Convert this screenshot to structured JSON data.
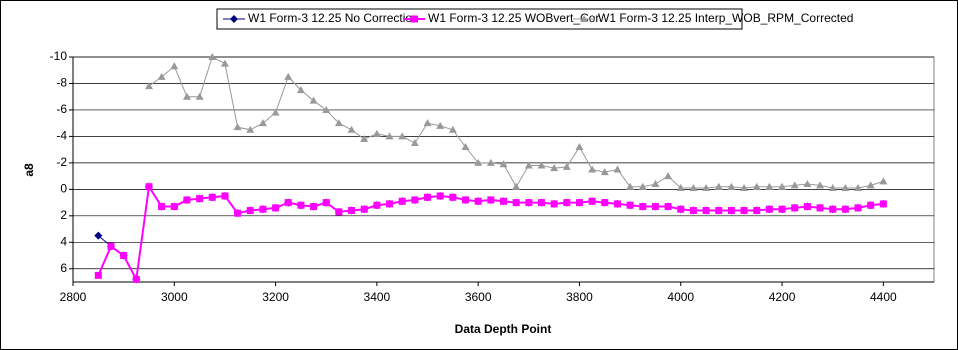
{
  "chart_data": {
    "type": "line",
    "x_label": "Data Depth Point",
    "y_label": "a8",
    "x": [
      2850,
      2875,
      2900,
      2925,
      2950,
      2975,
      3000,
      3025,
      3050,
      3075,
      3100,
      3125,
      3150,
      3175,
      3200,
      3225,
      3250,
      3275,
      3300,
      3325,
      3350,
      3375,
      3400,
      3425,
      3450,
      3475,
      3500,
      3525,
      3550,
      3575,
      3600,
      3625,
      3650,
      3675,
      3700,
      3725,
      3750,
      3775,
      3800,
      3825,
      3850,
      3875,
      3900,
      3925,
      3950,
      3975,
      4000,
      4025,
      4050,
      4075,
      4100,
      4125,
      4150,
      4175,
      4200,
      4225,
      4250,
      4275,
      4300,
      4325,
      4350,
      4375,
      4400
    ],
    "series": [
      {
        "name": "W1 Form-3 12.25 No Correction",
        "color": "#000080",
        "marker": "diamond",
        "values": [
          3.5,
          4.3,
          5,
          6.8,
          -0.2,
          1.3,
          1.3,
          0.8,
          0.7,
          0.6,
          0.5,
          1.8,
          1.6,
          1.5,
          1.4,
          1.0,
          1.2,
          1.3,
          1.0,
          1.7,
          1.6,
          1.5,
          1.2,
          1.1,
          0.9,
          0.8,
          0.6,
          0.5,
          0.6,
          0.8,
          0.9,
          0.8,
          0.9,
          1.0,
          1.0,
          1.0,
          1.1,
          1.0,
          1.0,
          0.9,
          1.0,
          1.1,
          1.2,
          1.3,
          1.3,
          1.3,
          1.5,
          1.6,
          1.6,
          1.6,
          1.6,
          1.6,
          1.6,
          1.5,
          1.5,
          1.4,
          1.3,
          1.4,
          1.5,
          1.5,
          1.4,
          1.2,
          1.1
        ]
      },
      {
        "name": "W1 Form-3 12.25 WOBvert_Cor",
        "color": "#ff00ff",
        "marker": "square",
        "values": [
          6.5,
          4.3,
          5,
          6.8,
          -0.2,
          1.3,
          1.3,
          0.8,
          0.7,
          0.6,
          0.5,
          1.8,
          1.6,
          1.5,
          1.4,
          1.0,
          1.2,
          1.3,
          1.0,
          1.7,
          1.6,
          1.5,
          1.2,
          1.1,
          0.9,
          0.8,
          0.6,
          0.5,
          0.6,
          0.8,
          0.9,
          0.8,
          0.9,
          1.0,
          1.0,
          1.0,
          1.1,
          1.0,
          1.0,
          0.9,
          1.0,
          1.1,
          1.2,
          1.3,
          1.3,
          1.3,
          1.5,
          1.6,
          1.6,
          1.6,
          1.6,
          1.6,
          1.6,
          1.5,
          1.5,
          1.4,
          1.3,
          1.4,
          1.5,
          1.5,
          1.4,
          1.2,
          1.1
        ]
      },
      {
        "name": "W1 Form-3 12.25 Interp_WOB_RPM_Corrected",
        "color": "#999999",
        "marker": "triangle",
        "values": [
          null,
          null,
          null,
          null,
          -7.8,
          -8.5,
          -9.3,
          -7,
          -7,
          -10,
          -9.5,
          -4.7,
          -4.5,
          -5,
          -5.8,
          -8.5,
          -7.5,
          -6.7,
          -6,
          -5,
          -4.5,
          -3.8,
          -4.2,
          -4,
          -4,
          -3.5,
          -5,
          -4.8,
          -4.5,
          -3.2,
          -2,
          -2,
          -1.9,
          -0.2,
          -1.8,
          -1.8,
          -1.6,
          -1.7,
          -3.2,
          -1.5,
          -1.3,
          -1.5,
          -0.2,
          -0.2,
          -0.4,
          -1.0,
          -0.1,
          -0.1,
          -0.1,
          -0.2,
          -0.2,
          -0.1,
          -0.2,
          -0.2,
          -0.2,
          -0.3,
          -0.4,
          -0.3,
          -0.1,
          -0.1,
          -0.1,
          -0.3,
          -0.6
        ]
      }
    ],
    "xlim": [
      2800,
      4500
    ],
    "xticks": [
      2800,
      3000,
      3200,
      3400,
      3600,
      3800,
      4000,
      4200,
      4400
    ],
    "ylim": [
      -10,
      7
    ],
    "y_reversed": true,
    "yticks": [
      -10,
      -8,
      -6,
      -4,
      -2,
      0,
      2,
      4,
      6
    ],
    "grid": true,
    "legend": "top"
  }
}
